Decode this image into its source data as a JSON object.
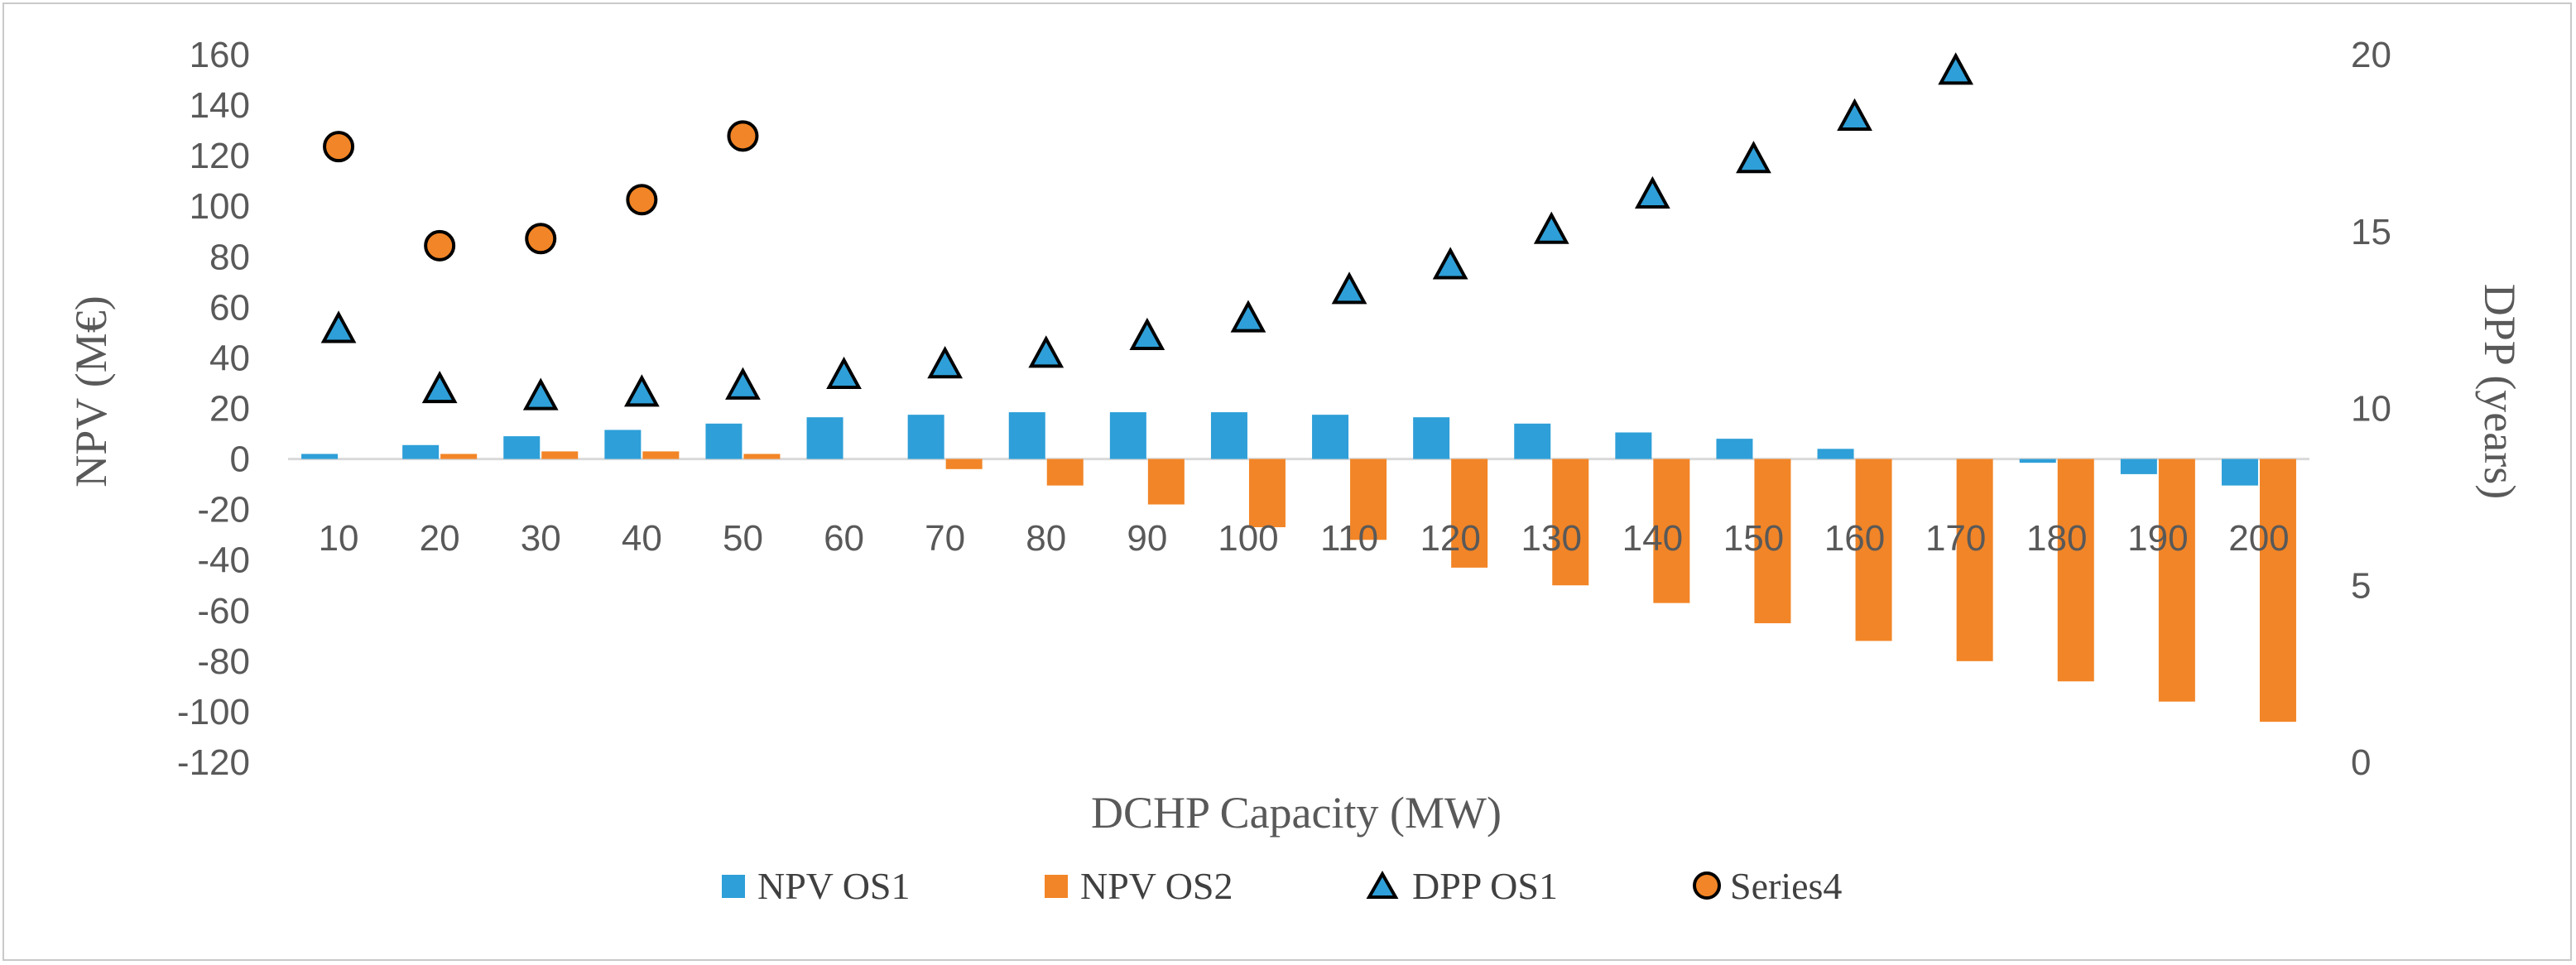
{
  "chart_data": {
    "type": "bar",
    "title": "",
    "xlabel": "DCHP Capacity (MW)",
    "ylabel": "NPV (M€)",
    "y2label": "DPP (years)",
    "ylim": [
      -120,
      160
    ],
    "yticks": [
      160,
      140,
      120,
      100,
      80,
      60,
      40,
      20,
      0,
      -20,
      -40,
      -60,
      -80,
      -100,
      -120
    ],
    "y2lim": [
      0,
      20
    ],
    "y2ticks": [
      20,
      15,
      10,
      5,
      0
    ],
    "categories": [
      "10",
      "20",
      "30",
      "40",
      "50",
      "60",
      "70",
      "80",
      "90",
      "100",
      "110",
      "120",
      "130",
      "140",
      "150",
      "160",
      "170",
      "180",
      "190",
      "200"
    ],
    "series": [
      {
        "name": "NPV OS1",
        "kind": "bar",
        "axis": "left",
        "color": "#2e9fd8",
        "values": [
          2,
          5.5,
          9,
          11.5,
          14,
          16.5,
          17.5,
          18.5,
          18.5,
          18.5,
          17.5,
          16.5,
          14,
          10.5,
          8,
          4,
          null,
          -1.5,
          -6,
          -10.5
        ]
      },
      {
        "name": "NPV OS2",
        "kind": "bar",
        "axis": "left",
        "color": "#f28527",
        "values": [
          null,
          2,
          3,
          3,
          2,
          null,
          -4,
          -10.5,
          -18,
          -27,
          -32,
          -43,
          -50,
          -57,
          -65,
          -72,
          -80,
          -88,
          -96,
          -104
        ]
      },
      {
        "name": "DPP OS1",
        "kind": "triangle",
        "axis": "right",
        "color": "#2e9fd8",
        "values": [
          12.2,
          10.5,
          10.3,
          10.4,
          10.6,
          10.9,
          11.2,
          11.5,
          12.0,
          12.5,
          13.3,
          14.0,
          15.0,
          16.0,
          17.0,
          18.2,
          19.5,
          null,
          null,
          null
        ]
      },
      {
        "name": "Series4",
        "kind": "circle",
        "axis": "right",
        "color": "#f28527",
        "values": [
          17.4,
          14.6,
          14.8,
          15.9,
          17.7,
          null,
          null,
          null,
          null,
          null,
          null,
          null,
          null,
          null,
          null,
          null,
          null,
          null,
          null,
          null
        ]
      }
    ],
    "legend": "bottom"
  }
}
